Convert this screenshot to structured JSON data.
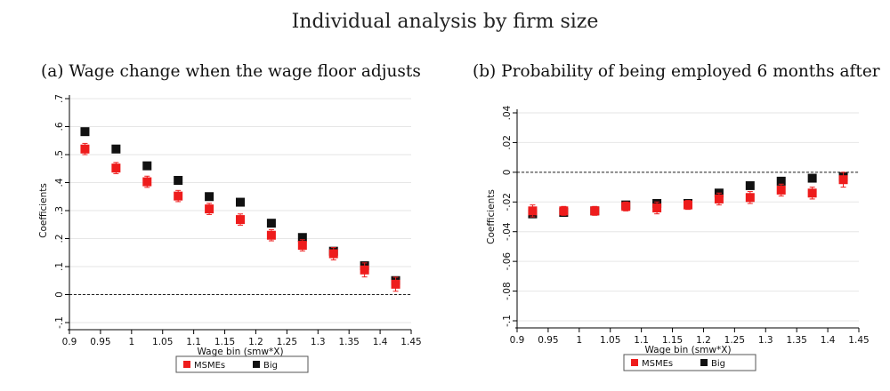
{
  "title": "Individual analysis by firm size",
  "colors": {
    "msme": "#ee1c1c",
    "big": "#111111",
    "grid": "#e6e6e6"
  },
  "chart_data": [
    {
      "id": "a",
      "type": "scatter",
      "title": "(a) Wage change when the wage floor adjusts",
      "xlabel": "Wage bin (smw*X)",
      "ylabel": "Coefficients",
      "xlim": [
        0.9,
        1.45
      ],
      "ylim": [
        -0.1,
        0.7
      ],
      "xticks": [
        "0.9",
        "0.95",
        "1",
        "1.05",
        "1.1",
        "1.15",
        "1.2",
        "1.25",
        "1.3",
        "1.35",
        "1.4",
        "1.45"
      ],
      "yticks": [
        "-.1",
        "0",
        ".1",
        ".2",
        ".3",
        ".4",
        ".5",
        ".6",
        ".7"
      ],
      "ytick_values": [
        -0.1,
        0,
        0.1,
        0.2,
        0.3,
        0.4,
        0.5,
        0.6,
        0.7
      ],
      "zero_line": true,
      "legend": [
        "MSMEs",
        "Big"
      ],
      "legend_position": "bottom",
      "series": [
        {
          "name": "MSMEs",
          "x": [
            0.925,
            0.975,
            1.025,
            1.075,
            1.125,
            1.175,
            1.225,
            1.275,
            1.325,
            1.375,
            1.425
          ],
          "y": [
            0.52,
            0.452,
            0.403,
            0.352,
            0.306,
            0.268,
            0.212,
            0.176,
            0.146,
            0.088,
            0.037
          ],
          "err": [
            0.02,
            0.02,
            0.02,
            0.02,
            0.02,
            0.02,
            0.02,
            0.02,
            0.022,
            0.025,
            0.025
          ]
        },
        {
          "name": "Big",
          "x": [
            0.925,
            0.975,
            1.025,
            1.075,
            1.125,
            1.175,
            1.225,
            1.275,
            1.325,
            1.375,
            1.425
          ],
          "y": [
            0.582,
            0.52,
            0.46,
            0.408,
            0.35,
            0.33,
            0.255,
            0.204,
            0.155,
            0.103,
            0.05
          ],
          "err": [
            0.01,
            0.01,
            0.01,
            0.01,
            0.01,
            0.01,
            0.01,
            0.01,
            0.01,
            0.01,
            0.01
          ]
        }
      ]
    },
    {
      "id": "b",
      "type": "scatter",
      "title": "(b) Probability of being employed 6 months after",
      "xlabel": "Wage bin (smw*X)",
      "ylabel": "Coefficients",
      "xlim": [
        0.9,
        1.45
      ],
      "ylim": [
        -0.1,
        0.04
      ],
      "xticks": [
        "0.9",
        "0.95",
        "1",
        "1.05",
        "1.1",
        "1.15",
        "1.2",
        "1.25",
        "1.3",
        "1.35",
        "1.4",
        "1.45"
      ],
      "yticks": [
        "-.1",
        "-.08",
        "-.06",
        "-.04",
        "-.02",
        "0",
        ".02",
        ".04"
      ],
      "ytick_values": [
        -0.1,
        -0.08,
        -0.06,
        -0.04,
        -0.02,
        0,
        0.02,
        0.04
      ],
      "zero_line": true,
      "legend": [
        "MSMEs",
        "Big"
      ],
      "legend_position": "bottom",
      "series": [
        {
          "name": "MSMEs",
          "x": [
            0.925,
            0.975,
            1.025,
            1.075,
            1.125,
            1.175,
            1.225,
            1.275,
            1.325,
            1.375,
            1.425
          ],
          "y": [
            -0.026,
            -0.026,
            -0.026,
            -0.023,
            -0.024,
            -0.022,
            -0.018,
            -0.017,
            -0.012,
            -0.014,
            -0.005
          ],
          "err": [
            0.004,
            0.003,
            0.003,
            0.003,
            0.004,
            0.003,
            0.004,
            0.004,
            0.004,
            0.004,
            0.005
          ]
        },
        {
          "name": "Big",
          "x": [
            0.925,
            0.975,
            1.025,
            1.075,
            1.125,
            1.175,
            1.225,
            1.275,
            1.325,
            1.375,
            1.425
          ],
          "y": [
            -0.028,
            -0.027,
            -0.026,
            -0.022,
            -0.021,
            -0.021,
            -0.014,
            -0.009,
            -0.006,
            -0.004,
            -0.003
          ],
          "err": [
            0.0015,
            0.0015,
            0.0015,
            0.0015,
            0.0015,
            0.0015,
            0.0015,
            0.0015,
            0.0015,
            0.0015,
            0.0015
          ]
        }
      ]
    }
  ]
}
